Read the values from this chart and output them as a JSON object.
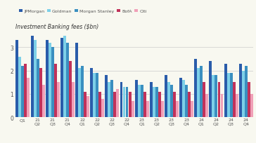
{
  "title": "Investment Banking fees ($bn)",
  "legend": [
    "JPMorgan",
    "Goldman",
    "Morgan Stanley",
    "BofA",
    "Citi"
  ],
  "colors": [
    "#2a5caa",
    "#7dd0e8",
    "#3a8fc0",
    "#c0325a",
    "#f0a0b8"
  ],
  "data_jpmorgan": [
    3.3,
    3.5,
    3.3,
    3.4,
    3.2,
    2.1,
    1.8,
    1.5,
    1.6,
    1.5,
    1.8,
    1.7,
    2.5,
    2.4,
    2.3,
    2.3
  ],
  "data_goldman": [
    2.6,
    3.3,
    3.2,
    3.5,
    2.1,
    1.9,
    1.5,
    1.3,
    1.4,
    1.3,
    1.5,
    1.6,
    2.1,
    1.8,
    1.9,
    2.0
  ],
  "data_morgan_stanley": [
    2.2,
    2.5,
    3.0,
    3.2,
    2.2,
    1.9,
    1.6,
    1.3,
    1.4,
    1.3,
    1.4,
    1.4,
    2.2,
    1.8,
    1.9,
    2.2
  ],
  "data_bofa": [
    2.3,
    2.1,
    2.3,
    2.4,
    1.1,
    1.1,
    1.1,
    1.1,
    1.1,
    1.1,
    1.1,
    1.1,
    1.5,
    1.5,
    1.5,
    1.5
  ],
  "data_citi": [
    1.7,
    1.4,
    1.5,
    1.5,
    0.9,
    0.8,
    1.2,
    0.7,
    0.7,
    0.7,
    0.7,
    0.7,
    1.0,
    1.0,
    1.0,
    1.0
  ],
  "x_labels": [
    "Q1",
    "'21\nQ2",
    "Q3",
    "Q4",
    "'22\nQ1",
    "Q2",
    "Q3",
    "Q4",
    "'23\nQ1",
    "Q2",
    "Q3",
    "Q4",
    "'24\nQ1",
    "Q2",
    "Q3",
    "Q4"
  ],
  "ylim": [
    0,
    3.7
  ],
  "yticks": [
    0,
    1,
    2,
    3
  ],
  "background": "#f8f8f0",
  "grid_color": "#cccccc",
  "title_color": "#333333",
  "tick_color": "#555555"
}
